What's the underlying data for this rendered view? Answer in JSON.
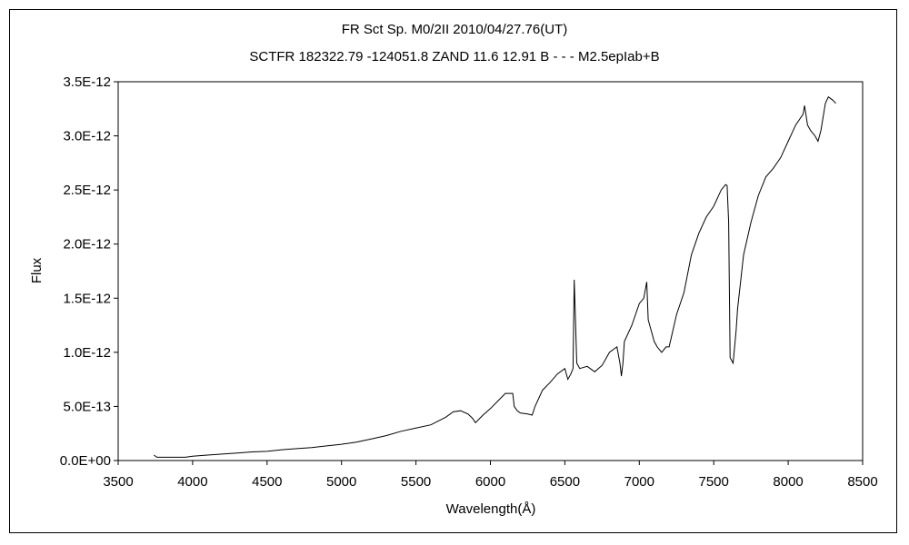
{
  "chart_data": {
    "type": "line",
    "title": "FR Sct    Sp. M0/2II    2010/04/27.76(UT)",
    "subtitle": "SCTFR 182322.79 -124051.8 ZAND 11.6 12.91 B - - - M2.5epIab+B",
    "xlabel": "Wavelength(Å)",
    "ylabel": "Flux",
    "xlim": [
      3500,
      8500
    ],
    "ylim": [
      0,
      3.5e-12
    ],
    "x_ticks": [
      3500,
      4000,
      4500,
      5000,
      5500,
      6000,
      6500,
      7000,
      7500,
      8000,
      8500
    ],
    "x_tick_labels": [
      "3500",
      "4000",
      "4500",
      "5000",
      "5500",
      "6000",
      "6500",
      "7000",
      "7500",
      "8000",
      "8500"
    ],
    "y_ticks": [
      0,
      5e-13,
      1e-12,
      1.5e-12,
      2e-12,
      2.5e-12,
      3e-12,
      3.5e-12
    ],
    "y_tick_labels": [
      "0.0E+00",
      "5.0E-13",
      "1.0E-12",
      "1.5E-12",
      "2.0E-12",
      "2.5E-12",
      "3.0E-12",
      "3.5E-12"
    ],
    "grid": false,
    "series": [
      {
        "x": [
          3740,
          3760,
          3800,
          3850,
          3900,
          3950,
          4000,
          4100,
          4200,
          4300,
          4400,
          4500,
          4600,
          4700,
          4800,
          4900,
          5000,
          5100,
          5200,
          5300,
          5400,
          5500,
          5600,
          5700,
          5750,
          5800,
          5850,
          5880,
          5900,
          5950,
          6000,
          6050,
          6100,
          6150,
          6160,
          6180,
          6200,
          6250,
          6280,
          6300,
          6350,
          6400,
          6450,
          6500,
          6520,
          6540,
          6555,
          6563,
          6570,
          6580,
          6600,
          6650,
          6700,
          6750,
          6800,
          6850,
          6870,
          6880,
          6890,
          6900,
          6950,
          7000,
          7030,
          7050,
          7060,
          7080,
          7100,
          7120,
          7150,
          7180,
          7200,
          7250,
          7300,
          7350,
          7400,
          7450,
          7500,
          7550,
          7580,
          7590,
          7600,
          7610,
          7630,
          7650,
          7660,
          7700,
          7750,
          7800,
          7850,
          7900,
          7950,
          8000,
          8050,
          8100,
          8110,
          8130,
          8150,
          8180,
          8200,
          8220,
          8250,
          8270,
          8300,
          8320
        ],
        "y": [
          5e-14,
          3e-14,
          3e-14,
          3e-14,
          3e-14,
          3e-14,
          4e-14,
          5e-14,
          6e-14,
          7e-14,
          8e-14,
          8.5e-14,
          1e-13,
          1.1e-13,
          1.2e-13,
          1.35e-13,
          1.5e-13,
          1.7e-13,
          2e-13,
          2.3e-13,
          2.7e-13,
          3e-13,
          3.3e-13,
          4e-13,
          4.5e-13,
          4.6e-13,
          4.3e-13,
          3.9e-13,
          3.5e-13,
          4.2e-13,
          4.8e-13,
          5.5e-13,
          6.2e-13,
          6.2e-13,
          5e-13,
          4.6e-13,
          4.4e-13,
          4.3e-13,
          4.2e-13,
          5e-13,
          6.5e-13,
          7.2e-13,
          8e-13,
          8.5e-13,
          7.5e-13,
          8e-13,
          8.5e-13,
          1.67e-12,
          1.35e-12,
          9e-13,
          8.5e-13,
          8.7e-13,
          8.2e-13,
          8.8e-13,
          1e-12,
          1.05e-12,
          9e-13,
          7.8e-13,
          9e-13,
          1.1e-12,
          1.25e-12,
          1.45e-12,
          1.5e-12,
          1.65e-12,
          1.3e-12,
          1.2e-12,
          1.1e-12,
          1.05e-12,
          1e-12,
          1.05e-12,
          1.05e-12,
          1.35e-12,
          1.55e-12,
          1.9e-12,
          2.1e-12,
          2.25e-12,
          2.35e-12,
          2.5e-12,
          2.55e-12,
          2.54e-12,
          2.2e-12,
          9.5e-13,
          9e-13,
          1.2e-12,
          1.4e-12,
          1.9e-12,
          2.2e-12,
          2.45e-12,
          2.62e-12,
          2.7e-12,
          2.8e-12,
          2.95e-12,
          3.1e-12,
          3.2e-12,
          3.28e-12,
          3.1e-12,
          3.05e-12,
          3e-12,
          2.95e-12,
          3.05e-12,
          3.3e-12,
          3.36e-12,
          3.33e-12,
          3.3e-12
        ]
      }
    ]
  }
}
